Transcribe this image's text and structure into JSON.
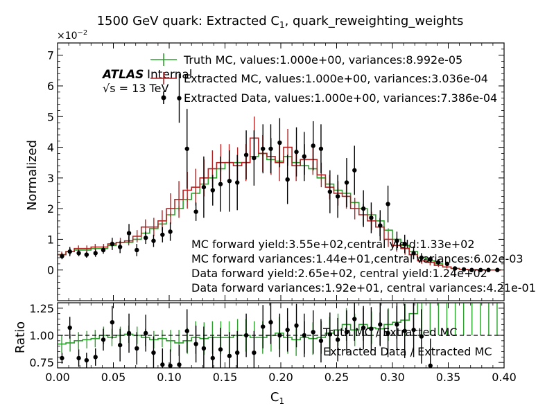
{
  "chart_data": {
    "type": "line",
    "title": "1500 GeV quark: Extracted C",
    "title_sub": "1",
    "title_rest": ", quark_reweighting_weights",
    "exponent_label": "×10",
    "exponent_power": "−2",
    "xlabel": "C",
    "xlabel_sub": "1",
    "ylabel_top": "Normalized",
    "ylabel_bottom": "Ratio",
    "xlim": [
      0.0,
      0.4
    ],
    "ylim_top": [
      -1,
      7.4
    ],
    "ylim_bottom": [
      0.7,
      1.3
    ],
    "x_ticks": [
      "0.00",
      "0.05",
      "0.10",
      "0.15",
      "0.20",
      "0.25",
      "0.30",
      "0.35",
      "0.40"
    ],
    "y_ticks_top": [
      "0",
      "1",
      "2",
      "3",
      "4",
      "5",
      "6",
      "7"
    ],
    "y_ticks_bottom": [
      "0.75",
      "1.00",
      "1.25"
    ],
    "atlas_label": "ATLAS",
    "internal_label": "Internal",
    "energy_label": "√s = 13 TeV",
    "legend_top": [
      "Truth MC, values:1.000e+00, variances:8.992e-05",
      "Extracted MC, values:1.000e+00, variances:3.036e-04",
      "Extracted Data, values:1.000e+00, variances:7.386e-04"
    ],
    "legend_bottom": [
      "Truth MC / Extracted MC",
      "Extracted Data / Extracted MC"
    ],
    "annotations": [
      "MC forward yield:3.55e+02,central yield:1.33e+02",
      "MC forward variances:1.44e+01,central variances:6.02e-03",
      "Data forward yield:2.65e+02, central yield:1.24e+02",
      "Data forward variances:1.92e+01, central variances:4.21e-01"
    ],
    "colors": {
      "truth": "#2ca02c",
      "extracted_mc": "#b22222",
      "data": "#000000"
    },
    "bin_edges": [
      0.0,
      0.0075,
      0.015,
      0.0225,
      0.03,
      0.0375,
      0.045,
      0.0525,
      0.06,
      0.0675,
      0.075,
      0.0825,
      0.09,
      0.0975,
      0.105,
      0.1125,
      0.12,
      0.1275,
      0.135,
      0.1425,
      0.15,
      0.1575,
      0.165,
      0.1725,
      0.18,
      0.1875,
      0.195,
      0.2025,
      0.21,
      0.2175,
      0.225,
      0.2325,
      0.24,
      0.2475,
      0.255,
      0.2625,
      0.27,
      0.2775,
      0.285,
      0.2925,
      0.3,
      0.3075,
      0.315,
      0.3225,
      0.33,
      0.3375,
      0.345,
      0.3525,
      0.36,
      0.3675,
      0.375,
      0.3825,
      0.39,
      0.3975
    ],
    "series": [
      {
        "name": "Truth MC",
        "style": "step",
        "values": [
          0.5,
          0.6,
          0.65,
          0.65,
          0.7,
          0.7,
          0.8,
          0.9,
          0.9,
          1.0,
          1.2,
          1.35,
          1.5,
          1.8,
          2.0,
          2.3,
          2.5,
          2.8,
          3.0,
          3.3,
          3.5,
          3.5,
          3.5,
          3.7,
          3.8,
          3.6,
          3.55,
          3.7,
          3.5,
          3.4,
          3.3,
          3.0,
          2.8,
          2.6,
          2.5,
          2.2,
          2.0,
          1.8,
          1.6,
          1.3,
          1.0,
          0.8,
          0.6,
          0.4,
          0.3,
          0.2,
          0.1,
          0.05,
          0.02,
          0.01,
          0.0,
          0.0,
          0.0
        ],
        "errors": [
          0.05,
          0.05,
          0.05,
          0.05,
          0.05,
          0.05,
          0.05,
          0.05,
          0.05,
          0.05,
          0.06,
          0.06,
          0.07,
          0.07,
          0.08,
          0.08,
          0.08,
          0.08,
          0.09,
          0.09,
          0.09,
          0.09,
          0.09,
          0.09,
          0.09,
          0.09,
          0.09,
          0.09,
          0.09,
          0.09,
          0.09,
          0.08,
          0.08,
          0.08,
          0.08,
          0.07,
          0.07,
          0.07,
          0.06,
          0.06,
          0.05,
          0.05,
          0.04,
          0.03,
          0.03,
          0.02,
          0.02,
          0.01,
          0.01,
          0.01,
          0.0,
          0.0,
          0.0
        ]
      },
      {
        "name": "Extracted MC",
        "style": "step",
        "values": [
          0.5,
          0.6,
          0.7,
          0.7,
          0.75,
          0.75,
          0.85,
          0.9,
          0.95,
          1.1,
          1.4,
          1.4,
          1.6,
          2.0,
          2.3,
          2.6,
          2.7,
          3.0,
          3.3,
          3.5,
          3.5,
          3.4,
          3.5,
          4.3,
          3.8,
          3.7,
          3.5,
          4.0,
          3.4,
          3.6,
          3.6,
          3.1,
          2.7,
          2.5,
          2.4,
          2.0,
          1.8,
          1.6,
          1.4,
          1.0,
          0.8,
          0.7,
          0.5,
          0.3,
          0.25,
          0.15,
          0.1,
          0.05,
          0.02,
          0.01,
          0.0,
          0.0,
          0.0
        ],
        "errors": [
          0.1,
          0.1,
          0.1,
          0.1,
          0.1,
          0.1,
          0.1,
          0.15,
          0.15,
          0.2,
          0.25,
          0.3,
          0.35,
          0.5,
          0.6,
          0.6,
          0.6,
          0.6,
          0.6,
          0.6,
          0.6,
          0.6,
          0.6,
          0.7,
          0.6,
          0.6,
          0.6,
          0.6,
          0.5,
          0.5,
          0.5,
          0.4,
          0.4,
          0.4,
          0.4,
          0.35,
          0.35,
          0.3,
          0.3,
          0.25,
          0.2,
          0.2,
          0.15,
          0.1,
          0.1,
          0.05,
          0.05,
          0.03,
          0.02,
          0.01,
          0.0,
          0.0,
          0.0
        ]
      },
      {
        "name": "Extracted Data",
        "style": "points",
        "x": [
          0.004,
          0.011,
          0.019,
          0.026,
          0.034,
          0.041,
          0.049,
          0.056,
          0.064,
          0.071,
          0.079,
          0.086,
          0.094,
          0.101,
          0.109,
          0.116,
          0.124,
          0.131,
          0.139,
          0.146,
          0.154,
          0.161,
          0.169,
          0.176,
          0.184,
          0.191,
          0.199,
          0.206,
          0.214,
          0.221,
          0.229,
          0.236,
          0.244,
          0.251,
          0.259,
          0.266,
          0.274,
          0.281,
          0.289,
          0.296,
          0.304,
          0.311,
          0.319,
          0.326,
          0.334,
          0.341,
          0.349,
          0.356,
          0.364,
          0.371,
          0.379,
          0.386,
          0.394
        ],
        "values": [
          0.45,
          0.6,
          0.55,
          0.5,
          0.55,
          0.65,
          0.85,
          0.75,
          1.2,
          0.65,
          1.05,
          0.95,
          1.15,
          1.25,
          5.6,
          3.95,
          1.9,
          2.7,
          2.6,
          2.8,
          2.9,
          2.85,
          3.75,
          3.65,
          3.95,
          3.95,
          4.15,
          2.95,
          3.85,
          3.7,
          4.05,
          3.95,
          2.55,
          2.4,
          2.85,
          3.25,
          2.0,
          1.7,
          1.45,
          2.15,
          0.95,
          0.85,
          0.55,
          0.4,
          0.35,
          0.25,
          0.2,
          0.05,
          0.02,
          0.0,
          0.0,
          0.0,
          0.0
        ],
        "errors": [
          0.1,
          0.15,
          0.1,
          0.1,
          0.12,
          0.12,
          0.2,
          0.2,
          0.3,
          0.2,
          0.2,
          0.2,
          0.25,
          0.3,
          0.8,
          1.3,
          0.3,
          1.0,
          0.5,
          0.9,
          1.0,
          0.9,
          0.8,
          0.9,
          0.8,
          0.8,
          0.8,
          0.8,
          0.8,
          0.8,
          0.8,
          0.8,
          0.7,
          0.7,
          0.8,
          0.8,
          0.6,
          0.5,
          0.5,
          0.6,
          0.3,
          0.3,
          0.2,
          0.15,
          0.1,
          0.1,
          0.05,
          0.05,
          0.02,
          0.01,
          0.0,
          0.0,
          0.0
        ]
      },
      {
        "name": "Truth MC / Extracted MC",
        "style": "step",
        "panel": "ratio",
        "values": [
          0.92,
          0.93,
          0.95,
          0.96,
          0.97,
          1.0,
          0.98,
          1.0,
          1.01,
          1.0,
          0.98,
          0.96,
          0.97,
          0.95,
          0.93,
          0.95,
          0.98,
          0.97,
          0.98,
          0.98,
          0.98,
          1.0,
          1.0,
          0.98,
          0.98,
          1.0,
          1.02,
          0.98,
          0.96,
          0.98,
          0.97,
          0.98,
          1.02,
          1.05,
          1.1,
          1.05,
          1.1,
          1.07,
          1.06,
          1.1,
          1.12,
          1.14,
          1.2,
          1.3,
          1.3,
          1.3,
          1.3,
          1.3,
          1.3,
          1.3,
          1.3,
          1.3,
          1.3
        ],
        "errors": [
          0.08,
          0.08,
          0.08,
          0.08,
          0.08,
          0.08,
          0.08,
          0.08,
          0.08,
          0.08,
          0.08,
          0.08,
          0.08,
          0.1,
          0.12,
          0.12,
          0.15,
          0.15,
          0.15,
          0.15,
          0.15,
          0.15,
          0.15,
          0.15,
          0.15,
          0.15,
          0.15,
          0.15,
          0.15,
          0.15,
          0.15,
          0.15,
          0.15,
          0.15,
          0.15,
          0.15,
          0.15,
          0.15,
          0.15,
          0.15,
          0.15,
          0.15,
          0.2,
          0.3,
          0.3,
          0.3,
          0.3,
          0.3,
          0.3,
          0.3,
          0.3,
          0.3,
          0.3
        ]
      },
      {
        "name": "Extracted Data / Extracted MC",
        "style": "points",
        "panel": "ratio",
        "x": [
          0.004,
          0.011,
          0.019,
          0.026,
          0.034,
          0.041,
          0.049,
          0.056,
          0.064,
          0.071,
          0.079,
          0.086,
          0.094,
          0.101,
          0.109,
          0.116,
          0.124,
          0.131,
          0.139,
          0.146,
          0.154,
          0.161,
          0.169,
          0.176,
          0.184,
          0.191,
          0.199,
          0.206,
          0.214,
          0.221,
          0.229,
          0.236,
          0.244,
          0.251,
          0.259,
          0.266,
          0.274,
          0.281,
          0.289,
          0.296,
          0.304,
          0.311,
          0.319,
          0.326,
          0.334
        ],
        "values": [
          0.79,
          1.07,
          0.79,
          0.77,
          0.8,
          0.96,
          1.12,
          0.91,
          1.02,
          0.88,
          1.02,
          0.84,
          0.73,
          0.72,
          0.73,
          1.04,
          0.92,
          0.88,
          0.79,
          0.87,
          0.81,
          0.84,
          1.0,
          0.84,
          1.08,
          1.12,
          1.0,
          1.05,
          1.09,
          1.0,
          1.03,
          0.95,
          1.01,
          0.96,
          1.03,
          1.15,
          1.07,
          1.06,
          1.1,
          1.02,
          1.1,
          1.04,
          1.05,
          0.99,
          0.72
        ],
        "errors": [
          0.05,
          0.1,
          0.08,
          0.07,
          0.08,
          0.1,
          0.15,
          0.15,
          0.18,
          0.15,
          0.17,
          0.15,
          0.15,
          0.15,
          0.18,
          0.2,
          0.17,
          0.2,
          0.2,
          0.2,
          0.22,
          0.2,
          0.2,
          0.2,
          0.2,
          0.2,
          0.2,
          0.2,
          0.2,
          0.2,
          0.2,
          0.2,
          0.2,
          0.2,
          0.2,
          0.2,
          0.2,
          0.2,
          0.2,
          0.22,
          0.22,
          0.25,
          0.25,
          0.25,
          0.25
        ]
      }
    ]
  }
}
